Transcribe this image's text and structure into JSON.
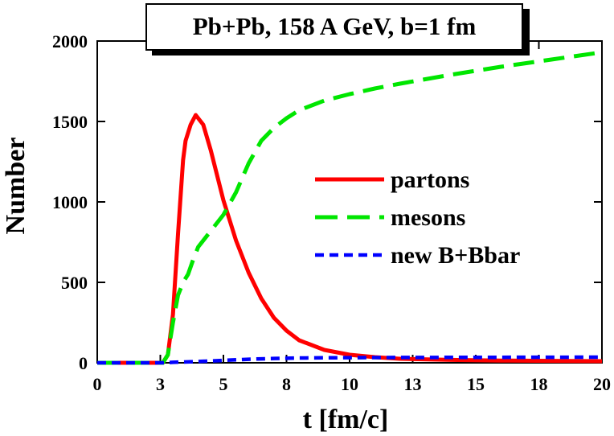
{
  "chart_data": {
    "type": "line",
    "title": "Pb+Pb,  158 A GeV,  b=1 fm",
    "xlabel": "t [fm/c]",
    "ylabel": "Number",
    "xlim": [
      0,
      20
    ],
    "ylim": [
      0,
      2000
    ],
    "x_ticks": [
      {
        "value": 0,
        "label": "0"
      },
      {
        "value": 2.5,
        "label": "3"
      },
      {
        "value": 5,
        "label": "5"
      },
      {
        "value": 7.5,
        "label": "8"
      },
      {
        "value": 10,
        "label": "10"
      },
      {
        "value": 12.5,
        "label": "13"
      },
      {
        "value": 15,
        "label": "15"
      },
      {
        "value": 17.5,
        "label": "18"
      },
      {
        "value": 20,
        "label": "20"
      }
    ],
    "y_ticks": [
      {
        "value": 0,
        "label": "0"
      },
      {
        "value": 500,
        "label": "500"
      },
      {
        "value": 1000,
        "label": "1000"
      },
      {
        "value": 1500,
        "label": "1500"
      },
      {
        "value": 2000,
        "label": "2000"
      }
    ],
    "legend_position": "right-middle",
    "series": [
      {
        "name": "partons",
        "color": "#ff0000",
        "style": "solid",
        "x": [
          0,
          2.6,
          2.8,
          3.0,
          3.2,
          3.4,
          3.5,
          3.7,
          3.9,
          4.2,
          4.5,
          5.0,
          5.5,
          6.0,
          6.5,
          7.0,
          7.5,
          8.0,
          9.0,
          10.0,
          11.0,
          12.0,
          14.0,
          16.0,
          18.0,
          20.0
        ],
        "y": [
          0,
          0,
          50,
          300,
          800,
          1260,
          1380,
          1480,
          1540,
          1480,
          1320,
          1010,
          760,
          560,
          400,
          280,
          200,
          140,
          80,
          50,
          35,
          25,
          18,
          14,
          12,
          10
        ]
      },
      {
        "name": "mesons",
        "color": "#00e600",
        "style": "dashed",
        "x": [
          0,
          2.6,
          2.8,
          3.0,
          3.2,
          3.4,
          3.6,
          3.8,
          4.0,
          4.5,
          5.0,
          5.5,
          6.0,
          6.5,
          7.0,
          7.5,
          8.0,
          9.0,
          10.0,
          11.0,
          12.0,
          14.0,
          16.0,
          18.0,
          20.0
        ],
        "y": [
          0,
          0,
          50,
          250,
          420,
          500,
          550,
          640,
          720,
          820,
          920,
          1060,
          1240,
          1380,
          1460,
          1520,
          1570,
          1630,
          1670,
          1705,
          1735,
          1790,
          1840,
          1885,
          1930
        ]
      },
      {
        "name": "new B+Bbar",
        "color": "#0000ff",
        "style": "dotted",
        "x": [
          0,
          2.6,
          3.0,
          4.0,
          5.0,
          6.0,
          7.0,
          8.0,
          10.0,
          12.0,
          14.0,
          16.0,
          18.0,
          20.0
        ],
        "y": [
          0,
          0,
          3,
          8,
          15,
          22,
          27,
          30,
          32,
          33,
          33.5,
          34,
          34.5,
          35
        ]
      }
    ]
  }
}
